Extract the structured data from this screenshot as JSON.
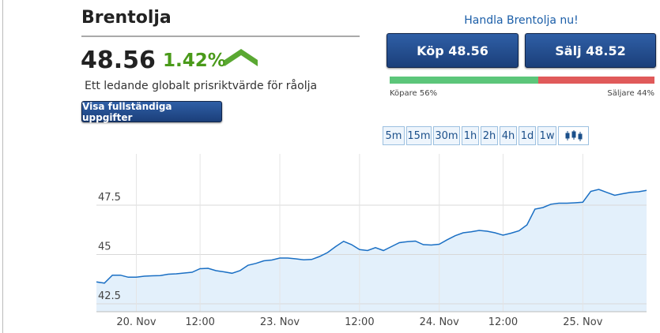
{
  "header": {
    "title": "Brentolja",
    "price": "48.56",
    "change": "1.42%",
    "description": "Ett ledande globalt prisriktvärde för råolja",
    "details_button": "Visa fullständiga uppgifter"
  },
  "trade": {
    "heading": "Handla Brentolja nu!",
    "buy_button": "Köp 48.56",
    "sell_button": "Sälj 48.52",
    "buyers": 56,
    "sellers": 44,
    "buyers_label": "Köpare 56%",
    "sellers_label": "Säljare 44%"
  },
  "timeframes": [
    "5m",
    "15m",
    "30m",
    "1h",
    "2h",
    "4h",
    "1d",
    "1w"
  ],
  "chart_data": {
    "type": "line",
    "categories": [
      null,
      null,
      null,
      null,
      null,
      "20. Nov",
      null,
      null,
      null,
      null,
      null,
      null,
      null,
      "12:00",
      null,
      null,
      null,
      null,
      null,
      null,
      null,
      null,
      null,
      "23. Nov",
      null,
      null,
      null,
      null,
      null,
      null,
      null,
      null,
      null,
      "12:00",
      null,
      null,
      null,
      null,
      null,
      null,
      null,
      null,
      null,
      "24. Nov",
      null,
      null,
      null,
      null,
      null,
      null,
      null,
      "12:00",
      null,
      null,
      null,
      null,
      null,
      null,
      null,
      null,
      null,
      "25. Nov",
      null,
      null,
      null,
      null,
      null,
      null,
      null,
      null
    ],
    "values": [
      43.61,
      43.55,
      43.95,
      43.95,
      43.85,
      43.85,
      43.9,
      43.92,
      43.93,
      44.0,
      44.02,
      44.06,
      44.1,
      44.28,
      44.3,
      44.18,
      44.12,
      44.05,
      44.18,
      44.45,
      44.55,
      44.68,
      44.72,
      44.82,
      44.82,
      44.78,
      44.73,
      44.75,
      44.9,
      45.1,
      45.4,
      45.67,
      45.5,
      45.25,
      45.2,
      45.35,
      45.2,
      45.4,
      45.6,
      45.65,
      45.68,
      45.5,
      45.48,
      45.52,
      45.75,
      45.95,
      46.1,
      46.15,
      46.22,
      46.18,
      46.1,
      45.98,
      46.08,
      46.2,
      46.5,
      47.3,
      47.38,
      47.55,
      47.6,
      47.6,
      47.62,
      47.65,
      48.2,
      48.3,
      48.15,
      48.0,
      48.08,
      48.15,
      48.18,
      48.25
    ],
    "color": "#1a6fc4",
    "fill": "#e3f0fb",
    "ylim": [
      42.1,
      49.7
    ],
    "yticks": [
      42.5,
      45,
      47.5
    ],
    "grid": true
  }
}
